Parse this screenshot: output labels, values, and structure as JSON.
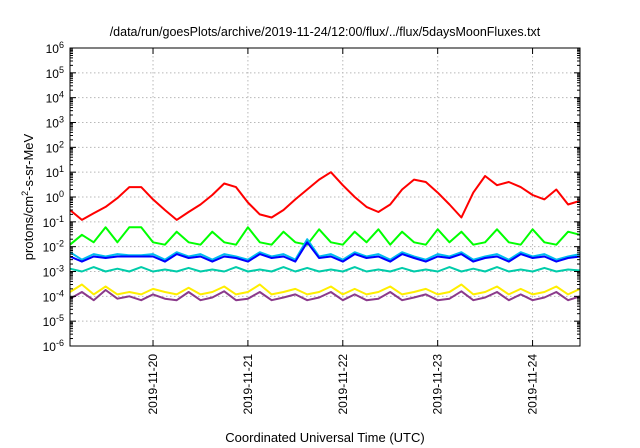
{
  "chart_data": {
    "type": "line",
    "title": "/data/run/goesPlots/archive/2019-11-24/12:00/flux/../flux/5daysMoonFluxes.txt",
    "xlabel": "Coordinated Universal Time (UTC)",
    "ylabel": {
      "prefix": "protons/cm",
      "sup": "2",
      "suffix": "-s-sr-MeV"
    },
    "y_scale": "log",
    "ylim": [
      1e-06,
      1000000.0
    ],
    "y_ticks": [
      {
        "base": "10",
        "exp": "-6",
        "value": -6
      },
      {
        "base": "10",
        "exp": "-5",
        "value": -5
      },
      {
        "base": "10",
        "exp": "-4",
        "value": -4
      },
      {
        "base": "10",
        "exp": "-3",
        "value": -3
      },
      {
        "base": "10",
        "exp": "-2",
        "value": -2
      },
      {
        "base": "10",
        "exp": "-1",
        "value": -1
      },
      {
        "base": "10",
        "exp": "0",
        "value": 0
      },
      {
        "base": "10",
        "exp": "1",
        "value": 1
      },
      {
        "base": "10",
        "exp": "2",
        "value": 2
      },
      {
        "base": "10",
        "exp": "3",
        "value": 3
      },
      {
        "base": "10",
        "exp": "4",
        "value": 4
      },
      {
        "base": "10",
        "exp": "5",
        "value": 5
      },
      {
        "base": "10",
        "exp": "6",
        "value": 6
      }
    ],
    "xlim": [
      "2019-11-19 03:00",
      "2019-11-24 12:00"
    ],
    "x_ticks": [
      "2019-11-20",
      "2019-11-21",
      "2019-11-22",
      "2019-11-23",
      "2019-11-24"
    ],
    "grid": true,
    "legend": "none",
    "series": [
      {
        "color": "#ff0000",
        "x": [
          "2019-11-19 03:00",
          "2019-11-19 06:00",
          "2019-11-19 09:00",
          "2019-11-19 12:00",
          "2019-11-19 15:00",
          "2019-11-19 18:00",
          "2019-11-19 21:00",
          "2019-11-20 00:00",
          "2019-11-20 03:00",
          "2019-11-20 06:00",
          "2019-11-20 09:00",
          "2019-11-20 12:00",
          "2019-11-20 15:00",
          "2019-11-20 18:00",
          "2019-11-20 21:00",
          "2019-11-21 00:00",
          "2019-11-21 03:00",
          "2019-11-21 06:00",
          "2019-11-21 09:00",
          "2019-11-21 12:00",
          "2019-11-21 15:00",
          "2019-11-21 18:00",
          "2019-11-21 21:00",
          "2019-11-22 00:00",
          "2019-11-22 03:00",
          "2019-11-22 06:00",
          "2019-11-22 09:00",
          "2019-11-22 12:00",
          "2019-11-22 15:00",
          "2019-11-22 18:00",
          "2019-11-22 21:00",
          "2019-11-23 00:00",
          "2019-11-23 03:00",
          "2019-11-23 06:00",
          "2019-11-23 09:00",
          "2019-11-23 12:00",
          "2019-11-23 15:00",
          "2019-11-23 18:00",
          "2019-11-23 21:00",
          "2019-11-24 00:00",
          "2019-11-24 03:00",
          "2019-11-24 06:00",
          "2019-11-24 09:00",
          "2019-11-24 12:00"
        ],
        "values": [
          0.3,
          0.12,
          0.22,
          0.4,
          0.9,
          2.5,
          2.5,
          0.8,
          0.3,
          0.12,
          0.25,
          0.5,
          1.2,
          3.5,
          2.5,
          0.6,
          0.2,
          0.15,
          0.3,
          0.8,
          2,
          5,
          10,
          3,
          1,
          0.4,
          0.25,
          0.5,
          2,
          5,
          4,
          1.5,
          0.5,
          0.15,
          1.5,
          7,
          3,
          4,
          2.5,
          1.2,
          0.8,
          2,
          0.5,
          0.7
        ]
      },
      {
        "color": "#00ff00",
        "x": [
          "2019-11-19 03:00",
          "2019-11-19 06:00",
          "2019-11-19 09:00",
          "2019-11-19 12:00",
          "2019-11-19 15:00",
          "2019-11-19 18:00",
          "2019-11-19 21:00",
          "2019-11-20 00:00",
          "2019-11-20 03:00",
          "2019-11-20 06:00",
          "2019-11-20 09:00",
          "2019-11-20 12:00",
          "2019-11-20 15:00",
          "2019-11-20 18:00",
          "2019-11-20 21:00",
          "2019-11-21 00:00",
          "2019-11-21 03:00",
          "2019-11-21 06:00",
          "2019-11-21 09:00",
          "2019-11-21 12:00",
          "2019-11-21 15:00",
          "2019-11-21 18:00",
          "2019-11-21 21:00",
          "2019-11-22 00:00",
          "2019-11-22 03:00",
          "2019-11-22 06:00",
          "2019-11-22 09:00",
          "2019-11-22 12:00",
          "2019-11-22 15:00",
          "2019-11-22 18:00",
          "2019-11-22 21:00",
          "2019-11-23 00:00",
          "2019-11-23 03:00",
          "2019-11-23 06:00",
          "2019-11-23 09:00",
          "2019-11-23 12:00",
          "2019-11-23 15:00",
          "2019-11-23 18:00",
          "2019-11-23 21:00",
          "2019-11-24 00:00",
          "2019-11-24 03:00",
          "2019-11-24 06:00",
          "2019-11-24 09:00",
          "2019-11-24 12:00"
        ],
        "values": [
          0.012,
          0.03,
          0.015,
          0.06,
          0.015,
          0.06,
          0.06,
          0.015,
          0.012,
          0.04,
          0.015,
          0.012,
          0.04,
          0.015,
          0.012,
          0.06,
          0.015,
          0.012,
          0.04,
          0.015,
          0.012,
          0.05,
          0.015,
          0.012,
          0.04,
          0.015,
          0.05,
          0.012,
          0.04,
          0.015,
          0.012,
          0.05,
          0.015,
          0.04,
          0.012,
          0.015,
          0.05,
          0.015,
          0.012,
          0.05,
          0.015,
          0.012,
          0.04,
          0.03
        ]
      },
      {
        "color": "#00bbee",
        "x": [
          "2019-11-19 03:00",
          "2019-11-19 06:00",
          "2019-11-19 09:00",
          "2019-11-19 12:00",
          "2019-11-19 15:00",
          "2019-11-19 18:00",
          "2019-11-19 21:00",
          "2019-11-20 00:00",
          "2019-11-20 03:00",
          "2019-11-20 06:00",
          "2019-11-20 09:00",
          "2019-11-20 12:00",
          "2019-11-20 15:00",
          "2019-11-20 18:00",
          "2019-11-20 21:00",
          "2019-11-21 00:00",
          "2019-11-21 03:00",
          "2019-11-21 06:00",
          "2019-11-21 09:00",
          "2019-11-21 12:00",
          "2019-11-21 15:00",
          "2019-11-21 18:00",
          "2019-11-21 21:00",
          "2019-11-22 00:00",
          "2019-11-22 03:00",
          "2019-11-22 06:00",
          "2019-11-22 09:00",
          "2019-11-22 12:00",
          "2019-11-22 15:00",
          "2019-11-22 18:00",
          "2019-11-22 21:00",
          "2019-11-23 00:00",
          "2019-11-23 03:00",
          "2019-11-23 06:00",
          "2019-11-23 09:00",
          "2019-11-23 12:00",
          "2019-11-23 15:00",
          "2019-11-23 18:00",
          "2019-11-23 21:00",
          "2019-11-24 00:00",
          "2019-11-24 03:00",
          "2019-11-24 06:00",
          "2019-11-24 09:00",
          "2019-11-24 12:00"
        ],
        "values": [
          0.006,
          0.003,
          0.005,
          0.004,
          0.005,
          0.0045,
          0.0045,
          0.005,
          0.003,
          0.006,
          0.004,
          0.005,
          0.003,
          0.005,
          0.004,
          0.003,
          0.006,
          0.004,
          0.005,
          0.003,
          0.02,
          0.004,
          0.005,
          0.003,
          0.006,
          0.004,
          0.005,
          0.003,
          0.006,
          0.004,
          0.003,
          0.005,
          0.004,
          0.006,
          0.003,
          0.004,
          0.005,
          0.003,
          0.006,
          0.004,
          0.005,
          0.003,
          0.004,
          0.005
        ]
      },
      {
        "color": "#0000ff",
        "x": [
          "2019-11-19 03:00",
          "2019-11-19 06:00",
          "2019-11-19 09:00",
          "2019-11-19 12:00",
          "2019-11-19 15:00",
          "2019-11-19 18:00",
          "2019-11-19 21:00",
          "2019-11-20 00:00",
          "2019-11-20 03:00",
          "2019-11-20 06:00",
          "2019-11-20 09:00",
          "2019-11-20 12:00",
          "2019-11-20 15:00",
          "2019-11-20 18:00",
          "2019-11-20 21:00",
          "2019-11-21 00:00",
          "2019-11-21 03:00",
          "2019-11-21 06:00",
          "2019-11-21 09:00",
          "2019-11-21 12:00",
          "2019-11-21 15:00",
          "2019-11-21 18:00",
          "2019-11-21 21:00",
          "2019-11-22 00:00",
          "2019-11-22 03:00",
          "2019-11-22 06:00",
          "2019-11-22 09:00",
          "2019-11-22 12:00",
          "2019-11-22 15:00",
          "2019-11-22 18:00",
          "2019-11-22 21:00",
          "2019-11-23 00:00",
          "2019-11-23 03:00",
          "2019-11-23 06:00",
          "2019-11-23 09:00",
          "2019-11-23 12:00",
          "2019-11-23 15:00",
          "2019-11-23 18:00",
          "2019-11-23 21:00",
          "2019-11-24 00:00",
          "2019-11-24 03:00",
          "2019-11-24 06:00",
          "2019-11-24 09:00",
          "2019-11-24 12:00"
        ],
        "values": [
          0.004,
          0.0025,
          0.004,
          0.0035,
          0.004,
          0.004,
          0.004,
          0.004,
          0.0025,
          0.005,
          0.0035,
          0.004,
          0.0025,
          0.004,
          0.0035,
          0.0025,
          0.005,
          0.0035,
          0.004,
          0.0025,
          0.015,
          0.0035,
          0.004,
          0.0025,
          0.005,
          0.0035,
          0.004,
          0.0025,
          0.005,
          0.0035,
          0.0025,
          0.004,
          0.0035,
          0.005,
          0.0025,
          0.0035,
          0.004,
          0.0025,
          0.005,
          0.0035,
          0.004,
          0.0025,
          0.0035,
          0.004
        ]
      },
      {
        "color": "#00ccaa",
        "x": [
          "2019-11-19 03:00",
          "2019-11-19 06:00",
          "2019-11-19 09:00",
          "2019-11-19 12:00",
          "2019-11-19 15:00",
          "2019-11-19 18:00",
          "2019-11-19 21:00",
          "2019-11-20 00:00",
          "2019-11-20 03:00",
          "2019-11-20 06:00",
          "2019-11-20 09:00",
          "2019-11-20 12:00",
          "2019-11-20 15:00",
          "2019-11-20 18:00",
          "2019-11-20 21:00",
          "2019-11-21 00:00",
          "2019-11-21 03:00",
          "2019-11-21 06:00",
          "2019-11-21 09:00",
          "2019-11-21 12:00",
          "2019-11-21 15:00",
          "2019-11-21 18:00",
          "2019-11-21 21:00",
          "2019-11-22 00:00",
          "2019-11-22 03:00",
          "2019-11-22 06:00",
          "2019-11-22 09:00",
          "2019-11-22 12:00",
          "2019-11-22 15:00",
          "2019-11-22 18:00",
          "2019-11-22 21:00",
          "2019-11-23 00:00",
          "2019-11-23 03:00",
          "2019-11-23 06:00",
          "2019-11-23 09:00",
          "2019-11-23 12:00",
          "2019-11-23 15:00",
          "2019-11-23 18:00",
          "2019-11-23 21:00",
          "2019-11-24 00:00",
          "2019-11-24 03:00",
          "2019-11-24 06:00",
          "2019-11-24 09:00",
          "2019-11-24 12:00"
        ],
        "values": [
          0.0013,
          0.001,
          0.0015,
          0.001,
          0.0013,
          0.001,
          0.0015,
          0.001,
          0.0012,
          0.001,
          0.0014,
          0.001,
          0.0012,
          0.001,
          0.0015,
          0.001,
          0.0012,
          0.001,
          0.0015,
          0.001,
          0.0014,
          0.001,
          0.0012,
          0.001,
          0.0015,
          0.001,
          0.0012,
          0.001,
          0.0014,
          0.001,
          0.0012,
          0.001,
          0.0015,
          0.001,
          0.0013,
          0.001,
          0.0015,
          0.001,
          0.0012,
          0.001,
          0.0014,
          0.001,
          0.0012,
          0.0011
        ]
      },
      {
        "color": "#ffee00",
        "x": [
          "2019-11-19 03:00",
          "2019-11-19 06:00",
          "2019-11-19 09:00",
          "2019-11-19 12:00",
          "2019-11-19 15:00",
          "2019-11-19 18:00",
          "2019-11-19 21:00",
          "2019-11-20 00:00",
          "2019-11-20 03:00",
          "2019-11-20 06:00",
          "2019-11-20 09:00",
          "2019-11-20 12:00",
          "2019-11-20 15:00",
          "2019-11-20 18:00",
          "2019-11-20 21:00",
          "2019-11-21 00:00",
          "2019-11-21 03:00",
          "2019-11-21 06:00",
          "2019-11-21 09:00",
          "2019-11-21 12:00",
          "2019-11-21 15:00",
          "2019-11-21 18:00",
          "2019-11-21 21:00",
          "2019-11-22 00:00",
          "2019-11-22 03:00",
          "2019-11-22 06:00",
          "2019-11-22 09:00",
          "2019-11-22 12:00",
          "2019-11-22 15:00",
          "2019-11-22 18:00",
          "2019-11-22 21:00",
          "2019-11-23 00:00",
          "2019-11-23 03:00",
          "2019-11-23 06:00",
          "2019-11-23 09:00",
          "2019-11-23 12:00",
          "2019-11-23 15:00",
          "2019-11-23 18:00",
          "2019-11-23 21:00",
          "2019-11-24 00:00",
          "2019-11-24 03:00",
          "2019-11-24 06:00",
          "2019-11-24 09:00",
          "2019-11-24 12:00"
        ],
        "values": [
          0.00015,
          0.0003,
          0.00012,
          0.00025,
          0.00012,
          0.00015,
          0.00012,
          0.0002,
          0.00015,
          0.00012,
          0.00022,
          0.00012,
          0.00015,
          0.00025,
          0.00012,
          0.00015,
          0.0003,
          0.00012,
          0.00015,
          0.0002,
          0.00012,
          0.00015,
          0.00025,
          0.00012,
          0.0002,
          0.00012,
          0.00015,
          0.00025,
          0.00012,
          0.00015,
          0.0002,
          0.00012,
          0.00015,
          0.0003,
          0.00012,
          0.00015,
          0.00025,
          0.00012,
          0.0002,
          0.00012,
          0.00015,
          0.00025,
          0.00012,
          0.0002
        ]
      },
      {
        "color": "#8b3a8b",
        "x": [
          "2019-11-19 03:00",
          "2019-11-19 06:00",
          "2019-11-19 09:00",
          "2019-11-19 12:00",
          "2019-11-19 15:00",
          "2019-11-19 18:00",
          "2019-11-19 21:00",
          "2019-11-20 00:00",
          "2019-11-20 03:00",
          "2019-11-20 06:00",
          "2019-11-20 09:00",
          "2019-11-20 12:00",
          "2019-11-20 15:00",
          "2019-11-20 18:00",
          "2019-11-20 21:00",
          "2019-11-21 00:00",
          "2019-11-21 03:00",
          "2019-11-21 06:00",
          "2019-11-21 09:00",
          "2019-11-21 12:00",
          "2019-11-21 15:00",
          "2019-11-21 18:00",
          "2019-11-21 21:00",
          "2019-11-22 00:00",
          "2019-11-22 03:00",
          "2019-11-22 06:00",
          "2019-11-22 09:00",
          "2019-11-22 12:00",
          "2019-11-22 15:00",
          "2019-11-22 18:00",
          "2019-11-22 21:00",
          "2019-11-23 00:00",
          "2019-11-23 03:00",
          "2019-11-23 06:00",
          "2019-11-23 09:00",
          "2019-11-23 12:00",
          "2019-11-23 15:00",
          "2019-11-23 18:00",
          "2019-11-23 21:00",
          "2019-11-24 00:00",
          "2019-11-24 03:00",
          "2019-11-24 06:00",
          "2019-11-24 09:00",
          "2019-11-24 12:00"
        ],
        "values": [
          8e-05,
          0.00015,
          7e-05,
          0.00018,
          8e-05,
          0.0001,
          7e-05,
          0.00012,
          8e-05,
          7e-05,
          0.00015,
          7e-05,
          9e-05,
          0.00016,
          7e-05,
          8e-05,
          0.00015,
          7e-05,
          9e-05,
          0.00012,
          7e-05,
          9e-05,
          0.00015,
          7e-05,
          0.00012,
          7e-05,
          8e-05,
          0.00015,
          7e-05,
          9e-05,
          0.00012,
          7e-05,
          8e-05,
          0.00016,
          7e-05,
          9e-05,
          0.00015,
          7e-05,
          0.00012,
          7e-05,
          9e-05,
          0.00015,
          7e-05,
          0.0001
        ]
      }
    ]
  }
}
